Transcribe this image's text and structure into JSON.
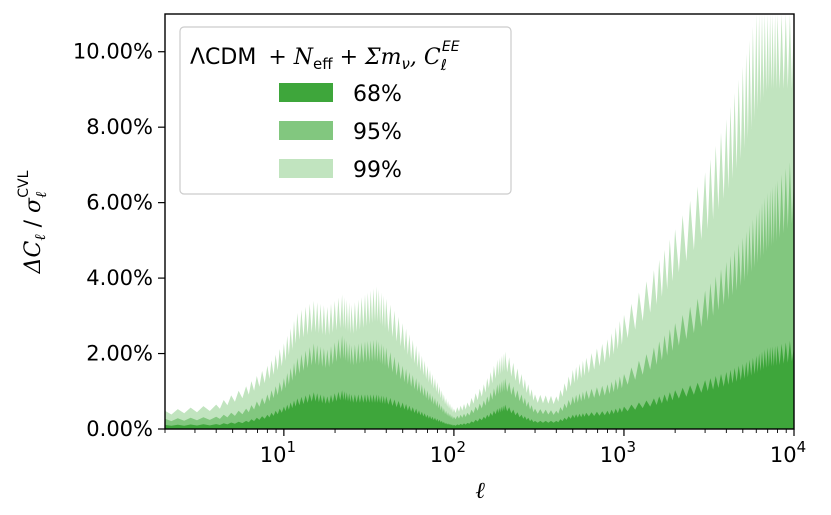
{
  "chart_data": {
    "type": "area",
    "title": "",
    "xlabel": "ℓ",
    "ylabel_main": "ΔC",
    "ylabel_sub": "ℓ",
    "ylabel_sigma": "σ",
    "ylabel_sigma_sub": "ℓ",
    "ylabel_sigma_sup": "CVL",
    "xscale": "log",
    "xlim": [
      2,
      10000
    ],
    "ylim": [
      0,
      11
    ],
    "xticks": [
      {
        "value": 10,
        "base": "10",
        "exp": "1"
      },
      {
        "value": 100,
        "base": "10",
        "exp": "2"
      },
      {
        "value": 1000,
        "base": "10",
        "exp": "3"
      },
      {
        "value": 10000,
        "base": "10",
        "exp": "4"
      }
    ],
    "yticks": [
      {
        "value": 0,
        "label": "0.00%"
      },
      {
        "value": 2,
        "label": "2.00%"
      },
      {
        "value": 4,
        "label": "4.00%"
      },
      {
        "value": 6,
        "label": "6.00%"
      },
      {
        "value": 8,
        "label": "8.00%"
      },
      {
        "value": 10,
        "label": "10.00%"
      }
    ],
    "legend": {
      "placement": "upper-left",
      "title_model": "ΛCDM",
      "title_ext": "+ N",
      "title_ext_sub": "eff",
      "title_ext2": " + Σm",
      "title_ext2_sub": "ν",
      "title_cl": ", C",
      "title_cl_sub": "ℓ",
      "title_cl_sup": "EE",
      "entries": [
        {
          "label": "68%",
          "color": "#3ea63b"
        },
        {
          "label": "95%",
          "color": "#82c77f"
        },
        {
          "label": "99%",
          "color": "#c1e4bf"
        }
      ]
    },
    "series": [
      {
        "name": "68%",
        "color": "#3ea63b",
        "x": [
          2,
          4,
          6,
          8,
          10,
          12,
          15,
          18,
          22,
          25,
          30,
          35,
          40,
          50,
          60,
          70,
          80,
          90,
          100,
          120,
          150,
          180,
          200,
          250,
          300,
          400,
          500,
          600,
          800,
          1000,
          1500,
          2000,
          3000,
          4000,
          5000,
          6000,
          7000,
          8000,
          10000
        ],
        "y": [
          0.1,
          0.12,
          0.2,
          0.35,
          0.55,
          0.75,
          0.9,
          0.8,
          0.95,
          0.85,
          0.85,
          0.85,
          0.8,
          0.65,
          0.5,
          0.35,
          0.25,
          0.15,
          0.1,
          0.15,
          0.3,
          0.5,
          0.6,
          0.35,
          0.2,
          0.2,
          0.35,
          0.4,
          0.45,
          0.55,
          0.75,
          0.95,
          1.2,
          1.4,
          1.6,
          1.8,
          2.0,
          2.05,
          2.2
        ]
      },
      {
        "name": "95%",
        "color": "#82c77f",
        "x": [
          2,
          4,
          6,
          8,
          10,
          12,
          15,
          18,
          22,
          25,
          30,
          35,
          40,
          50,
          60,
          70,
          80,
          90,
          100,
          120,
          150,
          180,
          200,
          250,
          300,
          400,
          500,
          600,
          800,
          1000,
          1500,
          2000,
          3000,
          4000,
          5000,
          6000,
          7000,
          8000,
          10000
        ],
        "y": [
          0.25,
          0.3,
          0.5,
          0.85,
          1.25,
          1.75,
          2.1,
          1.95,
          2.3,
          2.05,
          2.15,
          2.2,
          2.0,
          1.55,
          1.25,
          0.95,
          0.7,
          0.45,
          0.3,
          0.4,
          0.7,
          1.1,
          1.25,
          0.85,
          0.5,
          0.45,
          0.8,
          0.95,
          1.1,
          1.35,
          2.0,
          2.6,
          3.4,
          4.1,
          4.7,
          5.3,
          5.8,
          6.1,
          6.7
        ]
      },
      {
        "name": "99%",
        "color": "#c1e4bf",
        "x": [
          2,
          4,
          6,
          8,
          10,
          12,
          15,
          18,
          22,
          25,
          30,
          35,
          40,
          50,
          60,
          70,
          80,
          90,
          100,
          120,
          150,
          180,
          200,
          250,
          300,
          400,
          500,
          600,
          800,
          1000,
          1500,
          2000,
          3000,
          4000,
          5000,
          6000,
          7000,
          8000,
          10000
        ],
        "y": [
          0.45,
          0.6,
          1.05,
          1.55,
          2.1,
          2.85,
          3.15,
          3.0,
          3.3,
          3.05,
          3.3,
          3.5,
          3.2,
          2.6,
          2.05,
          1.55,
          1.15,
          0.75,
          0.5,
          0.65,
          1.1,
          1.7,
          1.9,
          1.35,
          0.85,
          0.8,
          1.45,
          1.75,
          2.2,
          2.8,
          3.9,
          4.9,
          6.3,
          7.6,
          8.9,
          10.2,
          11.0,
          11.0,
          11.0
        ]
      }
    ]
  }
}
